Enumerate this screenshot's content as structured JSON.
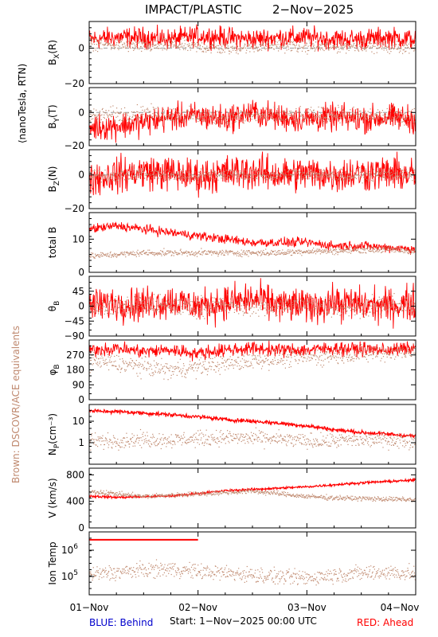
{
  "header": {
    "title_left": "IMPACT/PLASTIC",
    "title_right": "2−Nov−2025"
  },
  "left_labels": {
    "units": "⟨nanoTesla, RTN)",
    "dscovr": "Brown: DSCOVR/ACE equivalents"
  },
  "footer": {
    "behind": "BLUE: Behind",
    "start": "Start:  1−Nov−2025 00:00 UTC",
    "ahead": "RED: Ahead"
  },
  "colors": {
    "ahead": "#ff0000",
    "dscovr": "#c08a70",
    "behind": "#0000cc",
    "axis": "#000000"
  },
  "chart_data": {
    "type": "line",
    "x_axis": {
      "ticks": [
        "01−Nov",
        "02−Nov",
        "03−Nov",
        "04−Nov"
      ],
      "range_days": [
        0,
        3
      ]
    },
    "panels": [
      {
        "id": "bx",
        "ylabel": "B",
        "ylabel_sub": "X",
        "ylabel_suffix": "(R)",
        "yrange": [
          -20,
          15
        ],
        "ticks": [
          {
            "v": 0,
            "label": "0"
          },
          {
            "v": -20,
            "label": "−20"
          }
        ],
        "zero_line": true,
        "series": [
          {
            "color_key": "ahead",
            "base": [
              5,
              6,
              6,
              5,
              7,
              6,
              5,
              6,
              6,
              5,
              5,
              6,
              5
            ],
            "noise": 5
          },
          {
            "color_key": "dscovr",
            "base": [
              3,
              2,
              1,
              2,
              1,
              0,
              1,
              2,
              1,
              1,
              2,
              1,
              1
            ],
            "noise": 3
          }
        ]
      },
      {
        "id": "by",
        "ylabel": "B",
        "ylabel_sub": "Y",
        "ylabel_suffix": "(T)",
        "yrange": [
          -20,
          15
        ],
        "ticks": [
          {
            "v": 0,
            "label": "0"
          },
          {
            "v": -20,
            "label": "−20"
          }
        ],
        "zero_line": true,
        "series": [
          {
            "color_key": "ahead",
            "base": [
              -9,
              -8,
              -6,
              -3,
              -2,
              -4,
              0,
              -3,
              -4,
              -3,
              -4,
              -3,
              -4
            ],
            "noise": 7
          },
          {
            "color_key": "dscovr",
            "base": [
              -2,
              -1,
              0,
              -1,
              -2,
              -3,
              -2,
              -2,
              -2,
              -1,
              -2,
              -2,
              -2
            ],
            "noise": 4
          }
        ]
      },
      {
        "id": "bz",
        "ylabel": "B",
        "ylabel_sub": "Z",
        "ylabel_suffix": "(N)",
        "yrange": [
          -20,
          15
        ],
        "ticks": [
          {
            "v": 0,
            "label": "0"
          },
          {
            "v": -20,
            "label": "−20"
          }
        ],
        "zero_line": true,
        "series": [
          {
            "color_key": "ahead",
            "base": [
              -2,
              0,
              2,
              1,
              -1,
              1,
              2,
              0,
              1,
              0,
              1,
              1,
              0
            ],
            "noise": 9
          },
          {
            "color_key": "dscovr",
            "base": [
              0,
              0,
              1,
              0,
              0,
              1,
              0,
              0,
              1,
              0,
              0,
              1,
              0
            ],
            "noise": 3
          }
        ]
      },
      {
        "id": "btot",
        "ylabel": "total B",
        "yrange": [
          0,
          18
        ],
        "ticks": [
          {
            "v": 10,
            "label": "10"
          },
          {
            "v": 0,
            "label": "0"
          }
        ],
        "zero_line": false,
        "series": [
          {
            "color_key": "ahead",
            "base": [
              13,
              14,
              13,
              12,
              11,
              10,
              9,
              9,
              9,
              8,
              8,
              7.5,
              7
            ],
            "noise": 1.2
          },
          {
            "color_key": "dscovr",
            "base": [
              5,
              5.5,
              6,
              6,
              6,
              6,
              6,
              6,
              6.5,
              6.5,
              7,
              7,
              6.5
            ],
            "noise": 0.8
          }
        ]
      },
      {
        "id": "theta",
        "ylabel": "θ",
        "ylabel_sub": "B",
        "yrange": [
          -90,
          90
        ],
        "ticks": [
          {
            "v": 45,
            "label": "45"
          },
          {
            "v": 0,
            "label": "0"
          },
          {
            "v": -45,
            "label": "−45"
          },
          {
            "v": -90,
            "label": "−90"
          }
        ],
        "zero_line": false,
        "series": [
          {
            "color_key": "ahead",
            "base": [
              0,
              10,
              5,
              15,
              0,
              10,
              20,
              5,
              0,
              10,
              5,
              0,
              10
            ],
            "noise": 45
          },
          {
            "color_key": "dscovr",
            "base": [
              0,
              0,
              5,
              0,
              0,
              5,
              0,
              0,
              5,
              0,
              0,
              5,
              0
            ],
            "noise": 25
          }
        ]
      },
      {
        "id": "phi",
        "ylabel": "φ",
        "ylabel_sub": "B",
        "yrange": [
          0,
          360
        ],
        "ticks": [
          {
            "v": 270,
            "label": "270"
          },
          {
            "v": 180,
            "label": "180"
          },
          {
            "v": 90,
            "label": "90"
          },
          {
            "v": 0,
            "label": "0"
          }
        ],
        "zero_line": false,
        "series": [
          {
            "color_key": "ahead",
            "base": [
              300,
              310,
              290,
              300,
              280,
              300,
              310,
              300,
              300,
              310,
              305,
              300,
              310
            ],
            "noise": 35
          },
          {
            "color_key": "dscovr",
            "base": [
              240,
              220,
              200,
              180,
              200,
              220,
              240,
              250,
              260,
              270,
              280,
              290,
              300
            ],
            "noise": 45
          }
        ]
      },
      {
        "id": "np",
        "ylabel": "N",
        "ylabel_sub": "P",
        "ylabel_suffix": "(cm⁻³)",
        "log": true,
        "yrange": [
          0.1,
          60
        ],
        "ticks": [
          {
            "v": 10,
            "label": "10"
          },
          {
            "v": 1,
            "label": "1"
          }
        ],
        "zero_line": false,
        "series": [
          {
            "color_key": "ahead",
            "base": [
              30,
              28,
              24,
              20,
              16,
              12,
              10,
              8,
              6,
              4,
              3,
              2.5,
              2
            ],
            "noise": 0.08,
            "noise_log": true
          },
          {
            "color_key": "dscovr",
            "base": [
              1.2,
              1.3,
              1.5,
              1.4,
              1.6,
              1.8,
              1.7,
              1.5,
              1.2,
              1.3,
              1.4,
              1.4,
              1.3
            ],
            "noise": 0.3,
            "noise_log": true
          }
        ]
      },
      {
        "id": "v",
        "ylabel": "V (km/s)",
        "yrange": [
          0,
          900
        ],
        "ticks": [
          {
            "v": 800,
            "label": "800"
          },
          {
            "v": 400,
            "label": "400"
          },
          {
            "v": 0,
            "label": "0"
          }
        ],
        "zero_line": false,
        "series": [
          {
            "color_key": "ahead",
            "base": [
              480,
              460,
              470,
              480,
              520,
              560,
              580,
              600,
              620,
              650,
              680,
              700,
              720
            ],
            "noise": 15
          },
          {
            "color_key": "dscovr",
            "base": [
              560,
              520,
              480,
              500,
              520,
              540,
              560,
              520,
              480,
              460,
              450,
              440,
              430
            ],
            "noise": 30
          }
        ]
      },
      {
        "id": "temp",
        "ylabel": "Ion Temp",
        "log": true,
        "yrange": [
          20000,
          5000000
        ],
        "ticks": [
          {
            "v": 1000000,
            "label": "10",
            "exp": "6"
          },
          {
            "v": 100000,
            "label": "10",
            "exp": "5"
          }
        ],
        "zero_line": false,
        "series": [
          {
            "color_key": "ahead",
            "constant": 2500000,
            "x_end_day": 1.0
          },
          {
            "color_key": "dscovr",
            "base": [
              120000,
              150000,
              180000,
              200000,
              160000,
              140000,
              120000,
              100000,
              90000,
              120000,
              140000,
              150000,
              130000
            ],
            "noise": 0.25,
            "noise_log": true
          }
        ]
      }
    ]
  }
}
